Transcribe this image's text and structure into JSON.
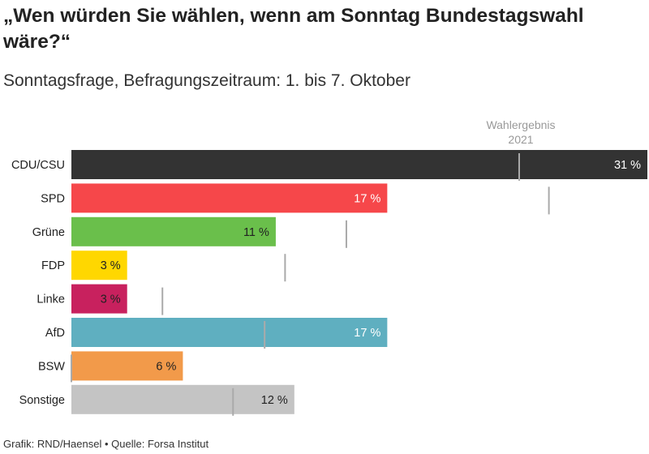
{
  "title": "„Wen würden Sie wählen, wenn am Sonntag Bundestagswahl wäre?“",
  "subtitle": "Sonntagsfrage, Befragungszeitraum: 1. bis 7. Oktober",
  "footer": "Grafik: RND/Haensel • Quelle: Forsa Institut",
  "chart_data": {
    "type": "bar",
    "orientation": "horizontal",
    "categories": [
      "CDU/CSU",
      "SPD",
      "Grüne",
      "FDP",
      "Linke",
      "AfD",
      "BSW",
      "Sonstige"
    ],
    "values": [
      31,
      17,
      11,
      3,
      3,
      17,
      6,
      12
    ],
    "value_labels": [
      "31 %",
      "17 %",
      "11 %",
      "3 %",
      "3 %",
      "17 %",
      "6 %",
      "12 %"
    ],
    "reference": {
      "label_line1": "Wahlergebnis",
      "label_line2": "2021",
      "values": [
        24.1,
        25.7,
        14.8,
        11.5,
        4.9,
        10.4,
        0,
        8.7
      ]
    },
    "colors": [
      "#333333",
      "#f6474a",
      "#6abf4b",
      "#ffd700",
      "#c8215e",
      "#5fafc0",
      "#f29a4a",
      "#c4c4c4"
    ],
    "label_colors": [
      "#ffffff",
      "#ffffff",
      "#222222",
      "#222222",
      "#222222",
      "#ffffff",
      "#222222",
      "#222222"
    ],
    "reference_color": "#aaaaaa",
    "xlim": [
      0,
      31
    ]
  }
}
